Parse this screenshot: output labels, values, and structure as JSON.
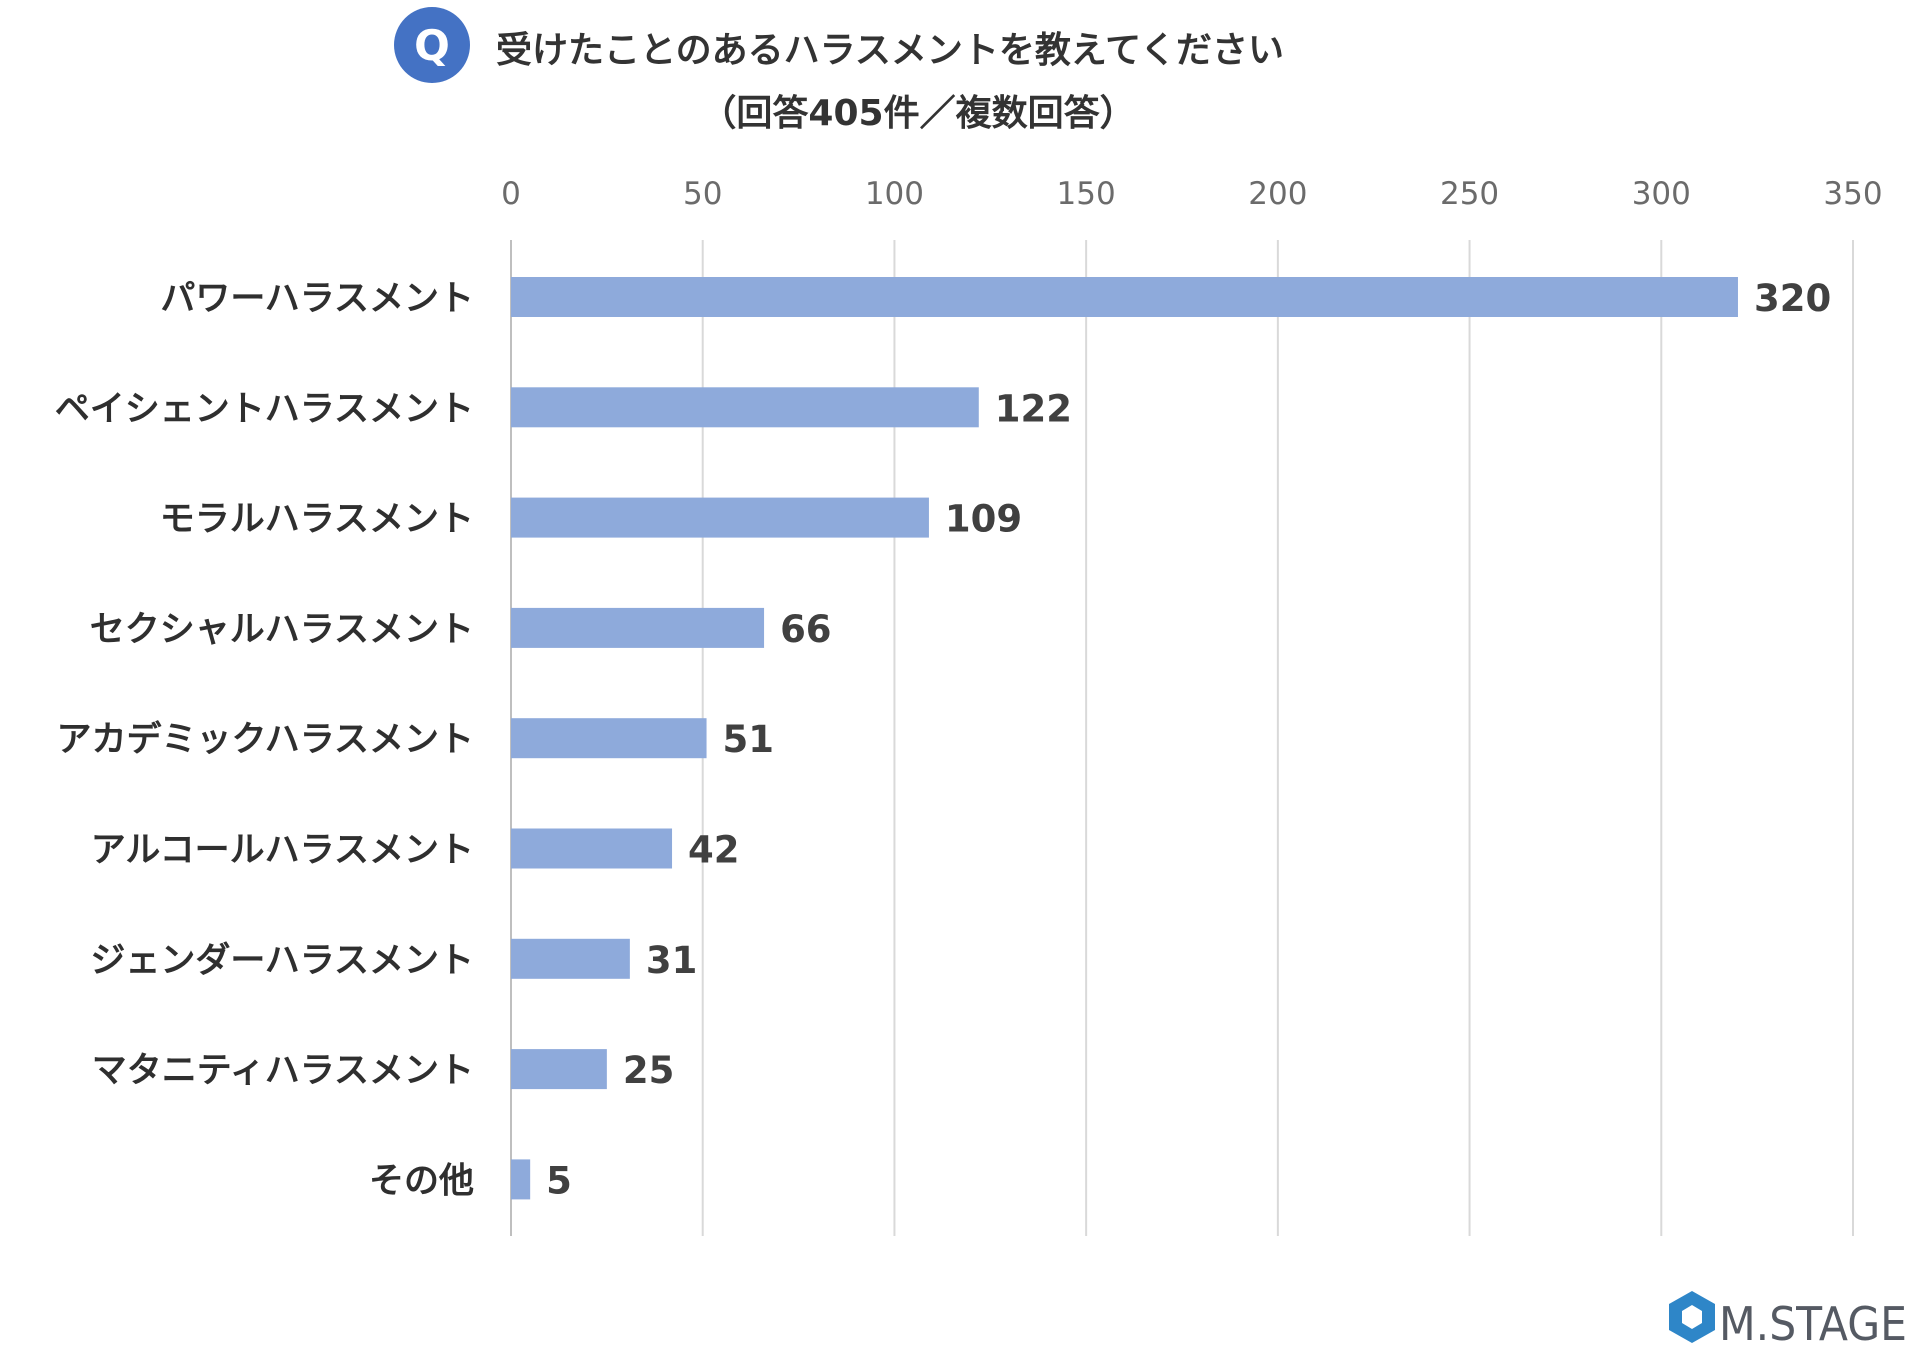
{
  "header": {
    "q_badge": "Q",
    "title": "受けたことのあるハラスメントを教えてください",
    "subtitle": "（回答405件／複数回答）"
  },
  "logo": {
    "text": "M.STAGE"
  },
  "colors": {
    "bar": "#8eaadb",
    "badge": "#4472c4",
    "grid": "#d9d9d9",
    "logo_blue": "#2e86c8"
  },
  "chart_data": {
    "type": "bar",
    "orientation": "horizontal",
    "title": "受けたことのあるハラスメントを教えてください",
    "subtitle": "（回答405件／複数回答）",
    "categories": [
      "パワーハラスメント",
      "ペイシェントハラスメント",
      "モラルハラスメント",
      "セクシャルハラスメント",
      "アカデミックハラスメント",
      "アルコールハラスメント",
      "ジェンダーハラスメント",
      "マタニティハラスメント",
      "その他"
    ],
    "values": [
      320,
      122,
      109,
      66,
      51,
      42,
      31,
      25,
      5
    ],
    "value_labels": [
      "320",
      "122",
      "109",
      "66",
      "51",
      "42",
      "31",
      "25",
      "5"
    ],
    "xlim": [
      0,
      350
    ],
    "x_ticks": [
      0,
      50,
      100,
      150,
      200,
      250,
      300,
      350
    ],
    "x_tick_labels": [
      "0",
      "50",
      "100",
      "150",
      "200",
      "250",
      "300",
      "350"
    ],
    "x_axis_position": "top",
    "grid": true,
    "legend": "none"
  }
}
